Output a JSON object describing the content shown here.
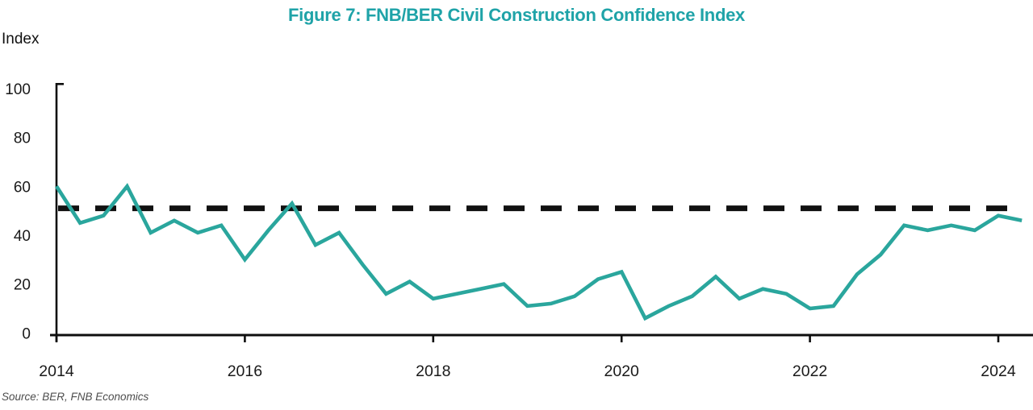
{
  "title": "Figure 7: FNB/BER Civil Construction Confidence Index",
  "y_axis_label": "Index",
  "source": "Source: BER, FNB Economics",
  "colors": {
    "title": "#1fa3a8",
    "line": "#2aa69d",
    "axis": "#0e0e0e",
    "neutral_line": "#111111",
    "tick_label": "#1a1a1a",
    "source_text": "#4d4d4d"
  },
  "chart_data": {
    "type": "line",
    "series_name": "FNB/BER Civil Construction Confidence Index",
    "x": [
      "2014Q1",
      "2014Q2",
      "2014Q3",
      "2014Q4",
      "2015Q1",
      "2015Q2",
      "2015Q3",
      "2015Q4",
      "2016Q1",
      "2016Q2",
      "2016Q3",
      "2016Q4",
      "2017Q1",
      "2017Q2",
      "2017Q3",
      "2017Q4",
      "2018Q1",
      "2018Q2",
      "2018Q3",
      "2018Q4",
      "2019Q1",
      "2019Q2",
      "2019Q3",
      "2019Q4",
      "2020Q1",
      "2020Q2",
      "2020Q3",
      "2020Q4",
      "2021Q1",
      "2021Q2",
      "2021Q3",
      "2021Q4",
      "2022Q1",
      "2022Q2",
      "2022Q3",
      "2022Q4",
      "2023Q1",
      "2023Q2",
      "2023Q3",
      "2023Q4",
      "2024Q1",
      "2024Q2"
    ],
    "values": [
      60,
      45,
      48,
      60,
      41,
      46,
      41,
      44,
      30,
      42,
      53,
      36,
      41,
      28,
      16,
      21,
      14,
      16,
      18,
      20,
      11,
      12,
      15,
      22,
      25,
      6,
      11,
      15,
      23,
      14,
      18,
      16,
      10,
      11,
      24,
      32,
      44,
      42,
      44,
      42,
      48,
      46
    ],
    "neutral_level": 51,
    "ylim": [
      0,
      100
    ],
    "yticks": [
      0,
      20,
      40,
      60,
      80,
      100
    ],
    "xtick_years": [
      2014,
      2016,
      2018,
      2020,
      2022,
      2024
    ],
    "xlabel": "",
    "ylabel": "Index",
    "grid": false,
    "legend": "none"
  }
}
